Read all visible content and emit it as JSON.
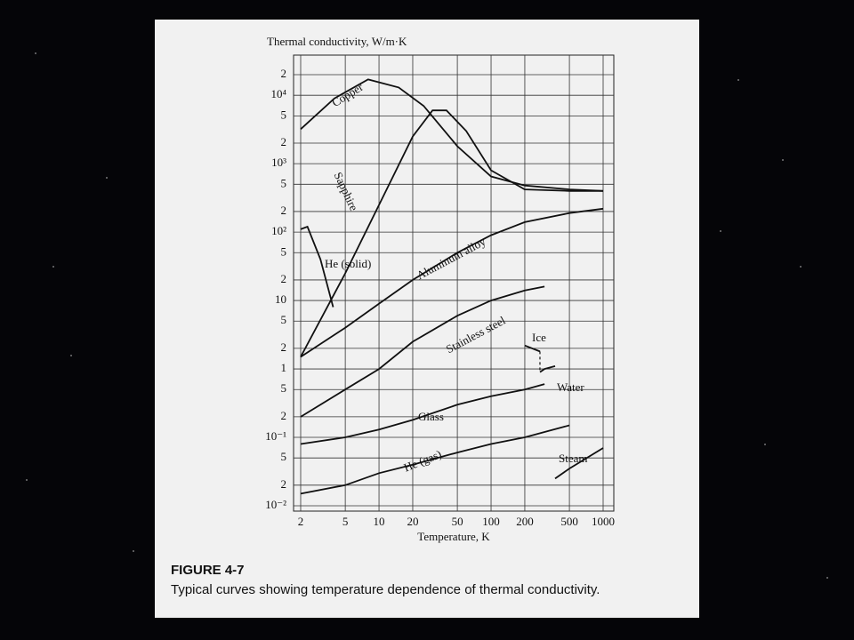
{
  "chart_data": {
    "type": "line",
    "ylabel": "Thermal conductivity, W/m·K",
    "xlabel": "Temperature, K",
    "figure_label": "FIGURE 4-7",
    "caption": "Typical curves showing temperature dependence of thermal conductivity.",
    "xscale": "log",
    "yscale": "log",
    "grid": true,
    "color": "#111111",
    "xlim": [
      2,
      1000
    ],
    "xticks": [
      2,
      5,
      10,
      20,
      50,
      100,
      200,
      500,
      1000
    ],
    "ylim": [
      0.01,
      20000
    ],
    "yticks": [
      {
        "value": 0.01,
        "label": "10⁻²"
      },
      {
        "value": 0.02,
        "label": "2"
      },
      {
        "value": 0.05,
        "label": "5"
      },
      {
        "value": 0.1,
        "label": "10⁻¹"
      },
      {
        "value": 0.2,
        "label": "2"
      },
      {
        "value": 0.5,
        "label": "5"
      },
      1,
      2,
      5,
      10,
      {
        "value": 20,
        "label": "2"
      },
      {
        "value": 50,
        "label": "5"
      },
      {
        "value": 100,
        "label": "10²"
      },
      {
        "value": 200,
        "label": "2"
      },
      {
        "value": 500,
        "label": "5"
      },
      {
        "value": 1000,
        "label": "10³"
      },
      {
        "value": 2000,
        "label": "2"
      },
      {
        "value": 5000,
        "label": "5"
      },
      {
        "value": 10000,
        "label": "10⁴"
      },
      {
        "value": 20000,
        "label": "2"
      }
    ],
    "series": [
      {
        "name": "Copper",
        "x": [
          2,
          4,
          8,
          15,
          25,
          50,
          100,
          200,
          500,
          1000
        ],
        "values": [
          3200,
          9000,
          17000,
          13000,
          7000,
          1800,
          650,
          480,
          420,
          400
        ]
      },
      {
        "name": "Sapphire",
        "x": [
          2,
          5,
          10,
          20,
          30,
          40,
          60,
          100,
          200,
          500,
          1000
        ],
        "values": [
          1.5,
          25,
          250,
          2500,
          6000,
          6000,
          3000,
          800,
          420,
          400,
          400
        ]
      },
      {
        "name": "He (solid)",
        "x": [
          2,
          2.3,
          3,
          3.9
        ],
        "values": [
          110,
          120,
          40,
          8
        ]
      },
      {
        "name": "Aluminum alloy",
        "x": [
          2,
          5,
          10,
          20,
          50,
          100,
          200,
          500,
          1000
        ],
        "values": [
          1.5,
          4,
          9,
          20,
          50,
          90,
          140,
          190,
          220
        ]
      },
      {
        "name": "Stainless steel",
        "x": [
          2,
          5,
          10,
          20,
          50,
          100,
          200,
          300
        ],
        "values": [
          0.2,
          0.5,
          1,
          2.5,
          6,
          10,
          14,
          16
        ]
      },
      {
        "name": "Ice",
        "x": [
          200,
          273
        ],
        "values": [
          2.2,
          1.8
        ]
      },
      {
        "name": "Water",
        "x": [
          273,
          300,
          373
        ],
        "values": [
          0.9,
          1.0,
          1.1
        ]
      },
      {
        "name": "Glass",
        "x": [
          2,
          5,
          10,
          20,
          50,
          100,
          200,
          300
        ],
        "values": [
          0.08,
          0.1,
          0.13,
          0.18,
          0.3,
          0.4,
          0.5,
          0.6
        ]
      },
      {
        "name": "He (gas)",
        "x": [
          2,
          5,
          10,
          20,
          50,
          100,
          200,
          500
        ],
        "values": [
          0.015,
          0.02,
          0.03,
          0.04,
          0.06,
          0.08,
          0.1,
          0.15
        ]
      },
      {
        "name": "Steam",
        "x": [
          373,
          500,
          1000
        ],
        "values": [
          0.025,
          0.035,
          0.07
        ]
      }
    ]
  }
}
